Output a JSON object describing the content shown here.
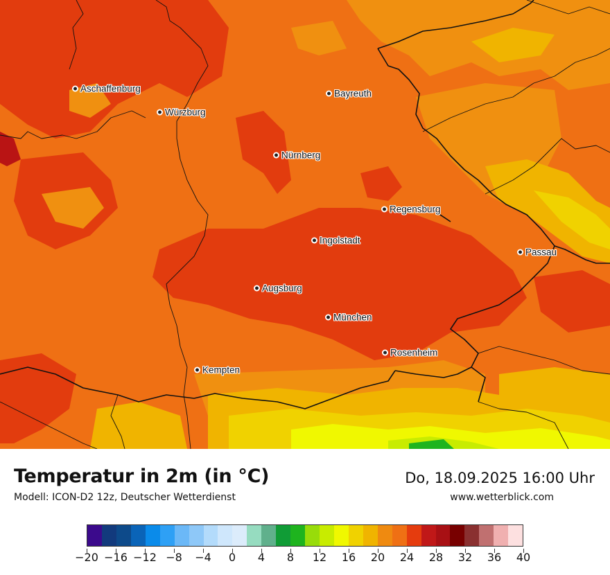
{
  "map": {
    "title": "Temperatur in 2m (in °C)",
    "model": "Modell: ICON-D2 12z, Deutscher Wetterdienst",
    "datetime": "Do, 18.09.2025 16:00 Uhr",
    "website": "www.wetterblick.com"
  },
  "cities": [
    {
      "id": "aschaffenburg",
      "name": "Aschaffenburg"
    },
    {
      "id": "wuerzburg",
      "name": "Würzburg"
    },
    {
      "id": "bayreuth",
      "name": "Bayreuth"
    },
    {
      "id": "nuernberg",
      "name": "Nürnberg"
    },
    {
      "id": "regensburg",
      "name": "Regensburg"
    },
    {
      "id": "ingolstadt",
      "name": "Ingolstadt"
    },
    {
      "id": "passau",
      "name": "Passau"
    },
    {
      "id": "augsburg",
      "name": "Augsburg"
    },
    {
      "id": "muenchen",
      "name": "München"
    },
    {
      "id": "rosenheim",
      "name": "Rosenheim"
    },
    {
      "id": "kempten",
      "name": "Kempten"
    }
  ],
  "legend": {
    "colors": [
      "#3b0a8c",
      "#123a7d",
      "#0d4a8a",
      "#0a64b8",
      "#0a8bea",
      "#2ea0f5",
      "#6bb8f7",
      "#8ec8f8",
      "#b3dbfb",
      "#cfe7fc",
      "#dcecfb",
      "#96dcc0",
      "#60b08c",
      "#109c36",
      "#1eb41e",
      "#98dc0a",
      "#c8ec00",
      "#f0f800",
      "#f0d200",
      "#f0b400",
      "#ef8a10",
      "#ef7014",
      "#e53c0e",
      "#c01818",
      "#a81014",
      "#780000",
      "#8a3030",
      "#c07070",
      "#f0b0b0",
      "#fde0e0"
    ],
    "tick_labels": [
      "−20",
      "−16",
      "−12",
      "−8",
      "−4",
      "0",
      "4",
      "8",
      "12",
      "16",
      "20",
      "24",
      "28",
      "32",
      "36",
      "40"
    ]
  }
}
